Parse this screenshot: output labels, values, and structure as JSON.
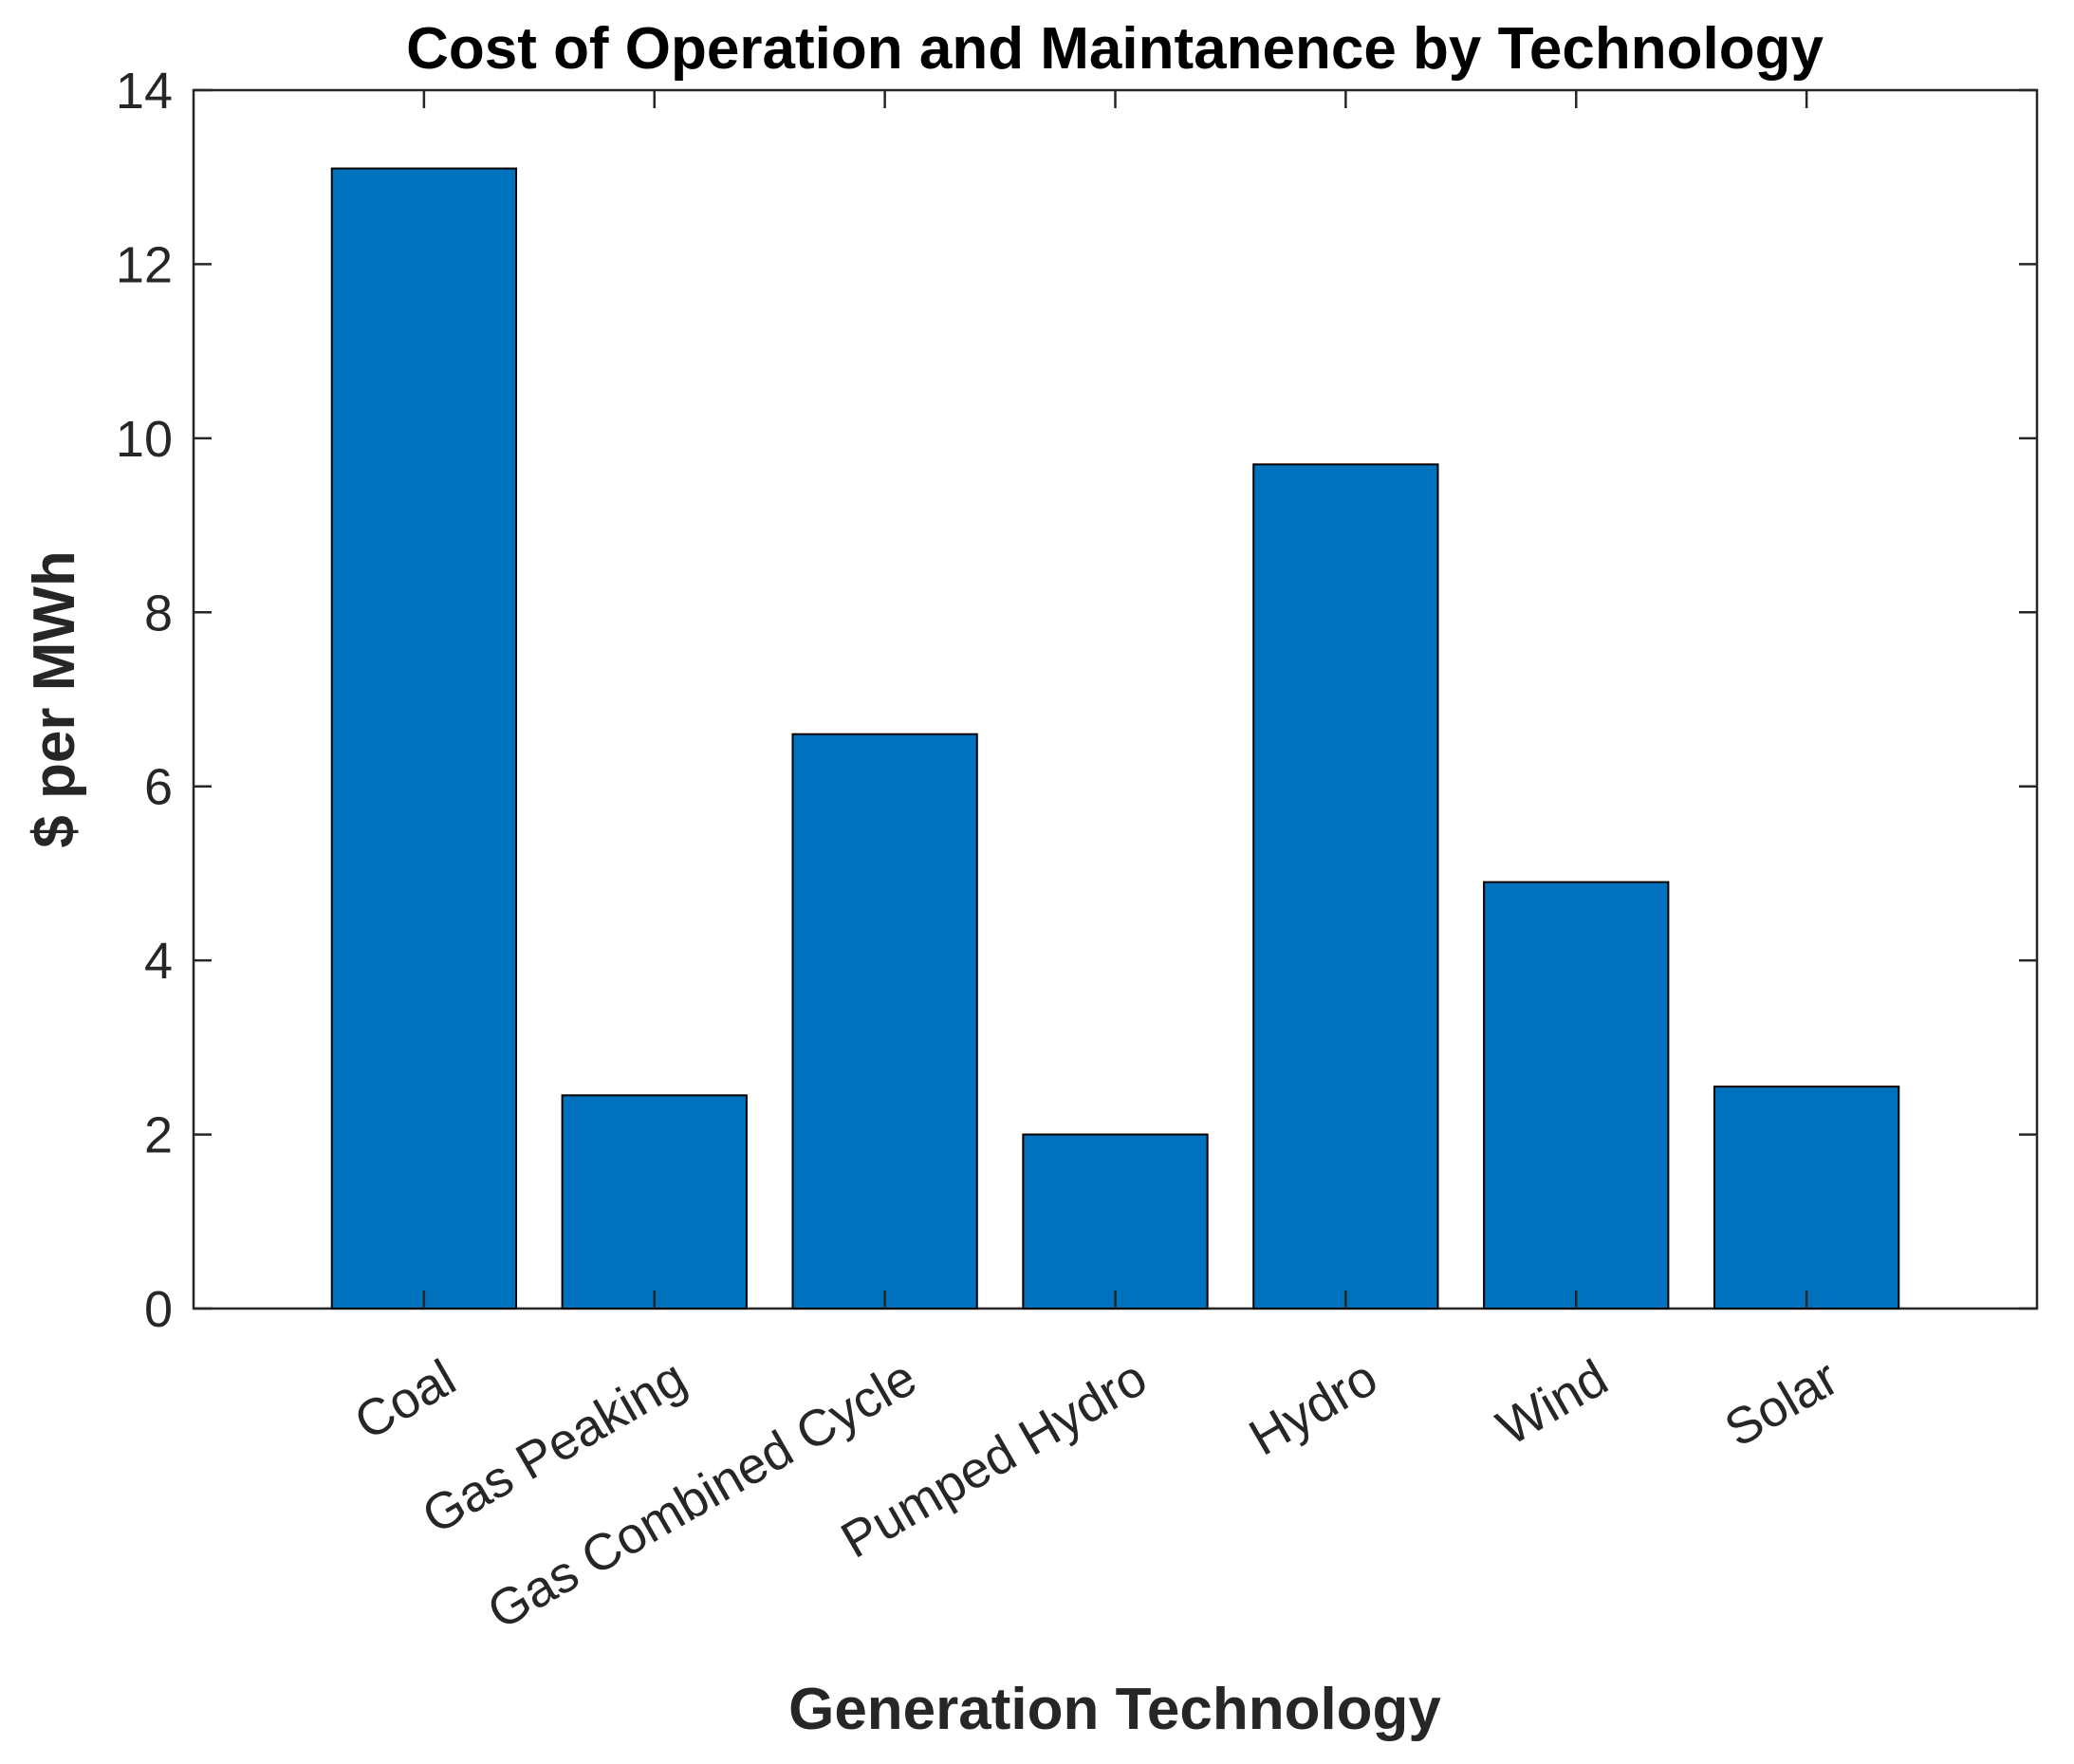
{
  "chart_data": {
    "type": "bar",
    "title": "Cost of Operation and Maintanence by Technology",
    "xlabel": "Generation Technology",
    "ylabel": "$ per MWh",
    "categories": [
      "Coal",
      "Gas Peaking",
      "Gas Combined Cycle",
      "Pumped Hydro",
      "Hydro",
      "Wind",
      "Solar"
    ],
    "values": [
      13.1,
      2.45,
      6.6,
      2.0,
      9.7,
      4.9,
      2.55
    ],
    "ylim": [
      0,
      14
    ],
    "yticks": [
      0,
      2,
      4,
      6,
      8,
      10,
      12,
      14
    ],
    "ytick_labels": [
      "0",
      "2",
      "4",
      "6",
      "8",
      "10",
      "12",
      "14"
    ],
    "grid": false,
    "bar_color": "#0072BD",
    "edge_color": "#000000"
  }
}
